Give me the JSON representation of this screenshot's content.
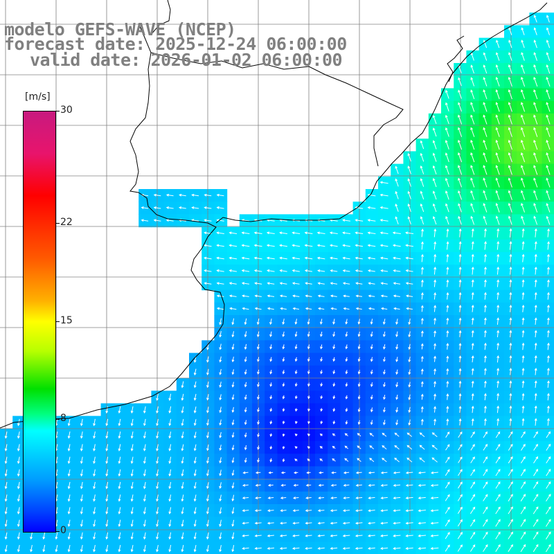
{
  "title": {
    "model": "modelo GEFS-WAVE (NCEP)",
    "forecast": "forecast date: 2025-12-24 06:00:00",
    "valid": "valid date: 2026-01-02 06:00:00"
  },
  "colorbar": {
    "unit": "[m/s]",
    "ticks": [
      {
        "label": "30",
        "value": 30
      },
      {
        "label": "22",
        "value": 22
      },
      {
        "label": "15",
        "value": 15
      },
      {
        "label": "8",
        "value": 8
      },
      {
        "label": "0",
        "value": 0
      }
    ]
  },
  "colors": {
    "land": "#ffffff",
    "coastline": "#000000",
    "grid": "#808080",
    "arrow": "#ffffff"
  }
}
